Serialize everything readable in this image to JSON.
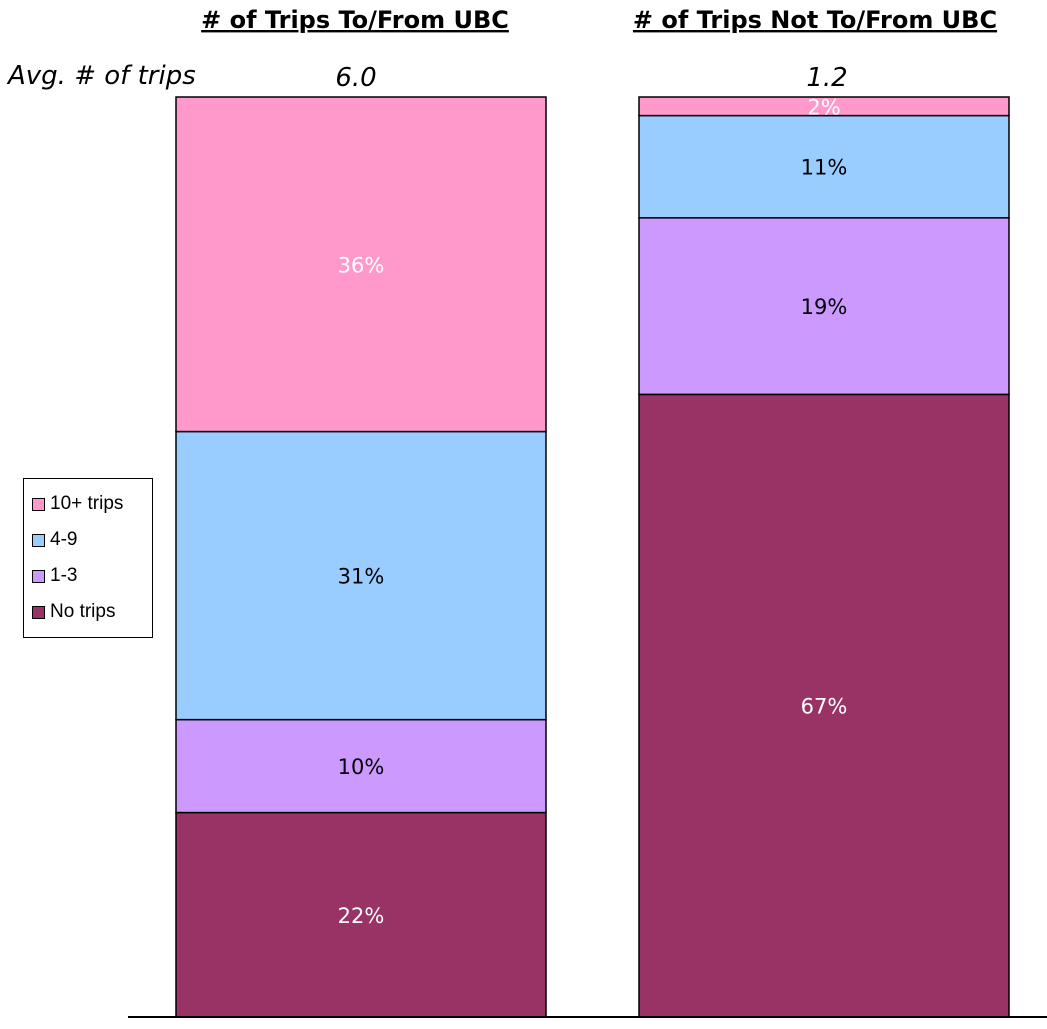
{
  "avg_label": "Avg. # of  trips",
  "chart_data": {
    "type": "bar",
    "stacked": true,
    "percent_stacked": true,
    "categories": [
      "# of Trips To/From UBC",
      "# of Trips Not To/From UBC"
    ],
    "avg_trips": [
      "6.0",
      "1.2"
    ],
    "series": [
      {
        "name": "No trips",
        "values": [
          22,
          67
        ],
        "labels": [
          "22%",
          "67%"
        ],
        "color": "#993366",
        "label_color": "#ffffff"
      },
      {
        "name": "1-3",
        "values": [
          10,
          19
        ],
        "labels": [
          "10%",
          "19%"
        ],
        "color": "#cc99ff",
        "label_color": "#000000"
      },
      {
        "name": "4-9",
        "values": [
          31,
          11
        ],
        "labels": [
          "31%",
          "11%"
        ],
        "color": "#99ccff",
        "label_color": "#000000"
      },
      {
        "name": "10+ trips",
        "values": [
          36,
          2
        ],
        "labels": [
          "36%",
          "2%"
        ],
        "color": "#ff99cc",
        "label_color": "#ffffff"
      }
    ],
    "legend": {
      "position": "left",
      "items": [
        {
          "label": "10+ trips",
          "color": "#ff99cc"
        },
        {
          "label": "4-9",
          "color": "#99ccff"
        },
        {
          "label": "1-3",
          "color": "#cc99ff"
        },
        {
          "label": "No trips",
          "color": "#993366"
        }
      ]
    },
    "ylim": [
      0,
      100
    ],
    "grid": false
  }
}
